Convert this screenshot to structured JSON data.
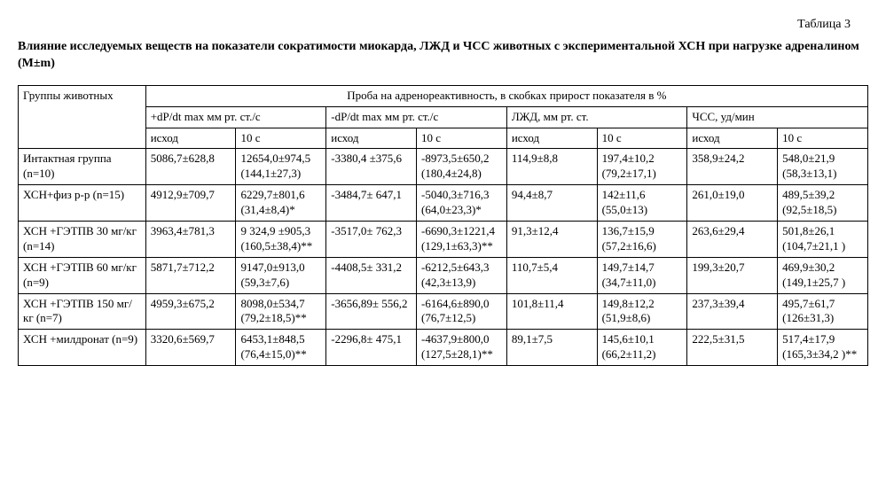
{
  "tableLabel": "Таблица 3",
  "title": "Влияние исследуемых веществ на показатели сократимости миокарда, ЛЖД и ЧСС животных с экспериментальной ХСН при нагрузке адреналином (M±m)",
  "header": {
    "groups": "Группы животных",
    "spanAll": "Проба на адренореактивность, в скобках прирост показателя в %",
    "c1": "+dP/dt max мм рт. ст./с",
    "c2": "-dP/dt max мм рт. ст./с",
    "c3": "ЛЖД, мм рт. ст.",
    "c4": "ЧСС, уд/мин",
    "sub1": "исход",
    "sub2": "10 с"
  },
  "rows": [
    {
      "g": "Интактная группа (n=10)",
      "v": [
        "5086,7±628,8",
        "12654,0±974,5 (144,1±27,3)",
        "-3380,4 ±375,6",
        "-8973,5±650,2 (180,4±24,8)",
        "114,9±8,8",
        "197,4±10,2 (79,2±17,1)",
        "358,9±24,2",
        "548,0±21,9 (58,3±13,1)"
      ]
    },
    {
      "g": "ХСН+физ р-р (n=15)",
      "v": [
        "4912,9±709,7",
        "6229,7±801,6 (31,4±8,4)*",
        "-3484,7± 647,1",
        "-5040,3±716,3 (64,0±23,3)*",
        "94,4±8,7",
        "142±11,6 (55,0±13)",
        "261,0±19,0",
        "489,5±39,2 (92,5±18,5)"
      ]
    },
    {
      "g": "ХСН +ГЭТПВ 30 мг/кг (n=14)",
      "v": [
        "3963,4±781,3",
        "9 324,9 ±905,3 (160,5±38,4)**",
        "-3517,0± 762,3",
        "-6690,3±1221,4 (129,1±63,3)**",
        "91,3±12,4",
        "136,7±15,9 (57,2±16,6)",
        "263,6±29,4",
        "501,8±26,1 (104,7±21,1 )"
      ]
    },
    {
      "g": "ХСН +ГЭТПВ 60 мг/кг (n=9)",
      "v": [
        "5871,7±712,2",
        "9147,0±913,0 (59,3±7,6)",
        "-4408,5± 331,2",
        "-6212,5±643,3 (42,3±13,9)",
        "110,7±5,4",
        "149,7±14,7 (34,7±11,0)",
        "199,3±20,7",
        "469,9±30,2 (149,1±25,7 )"
      ]
    },
    {
      "g": "ХСН +ГЭТПВ 150 мг/кг (n=7)",
      "v": [
        "4959,3±675,2",
        "8098,0±534,7 (79,2±18,5)**",
        "-3656,89± 556,2",
        "-6164,6±890,0 (76,7±12,5)",
        "101,8±11,4",
        "149,8±12,2 (51,9±8,6)",
        "237,3±39,4",
        "495,7±61,7 (126±31,3)"
      ]
    },
    {
      "g": "ХСН +милдронат (n=9)",
      "v": [
        "3320,6±569,7",
        "6453,1±848,5 (76,4±15,0)**",
        "-2296,8± 475,1",
        "-4637,9±800,0 (127,5±28,1)**",
        "89,1±7,5",
        "145,6±10,1 (66,2±11,2)",
        "222,5±31,5",
        "517,4±17,9 (165,3±34,2 )**"
      ]
    }
  ]
}
